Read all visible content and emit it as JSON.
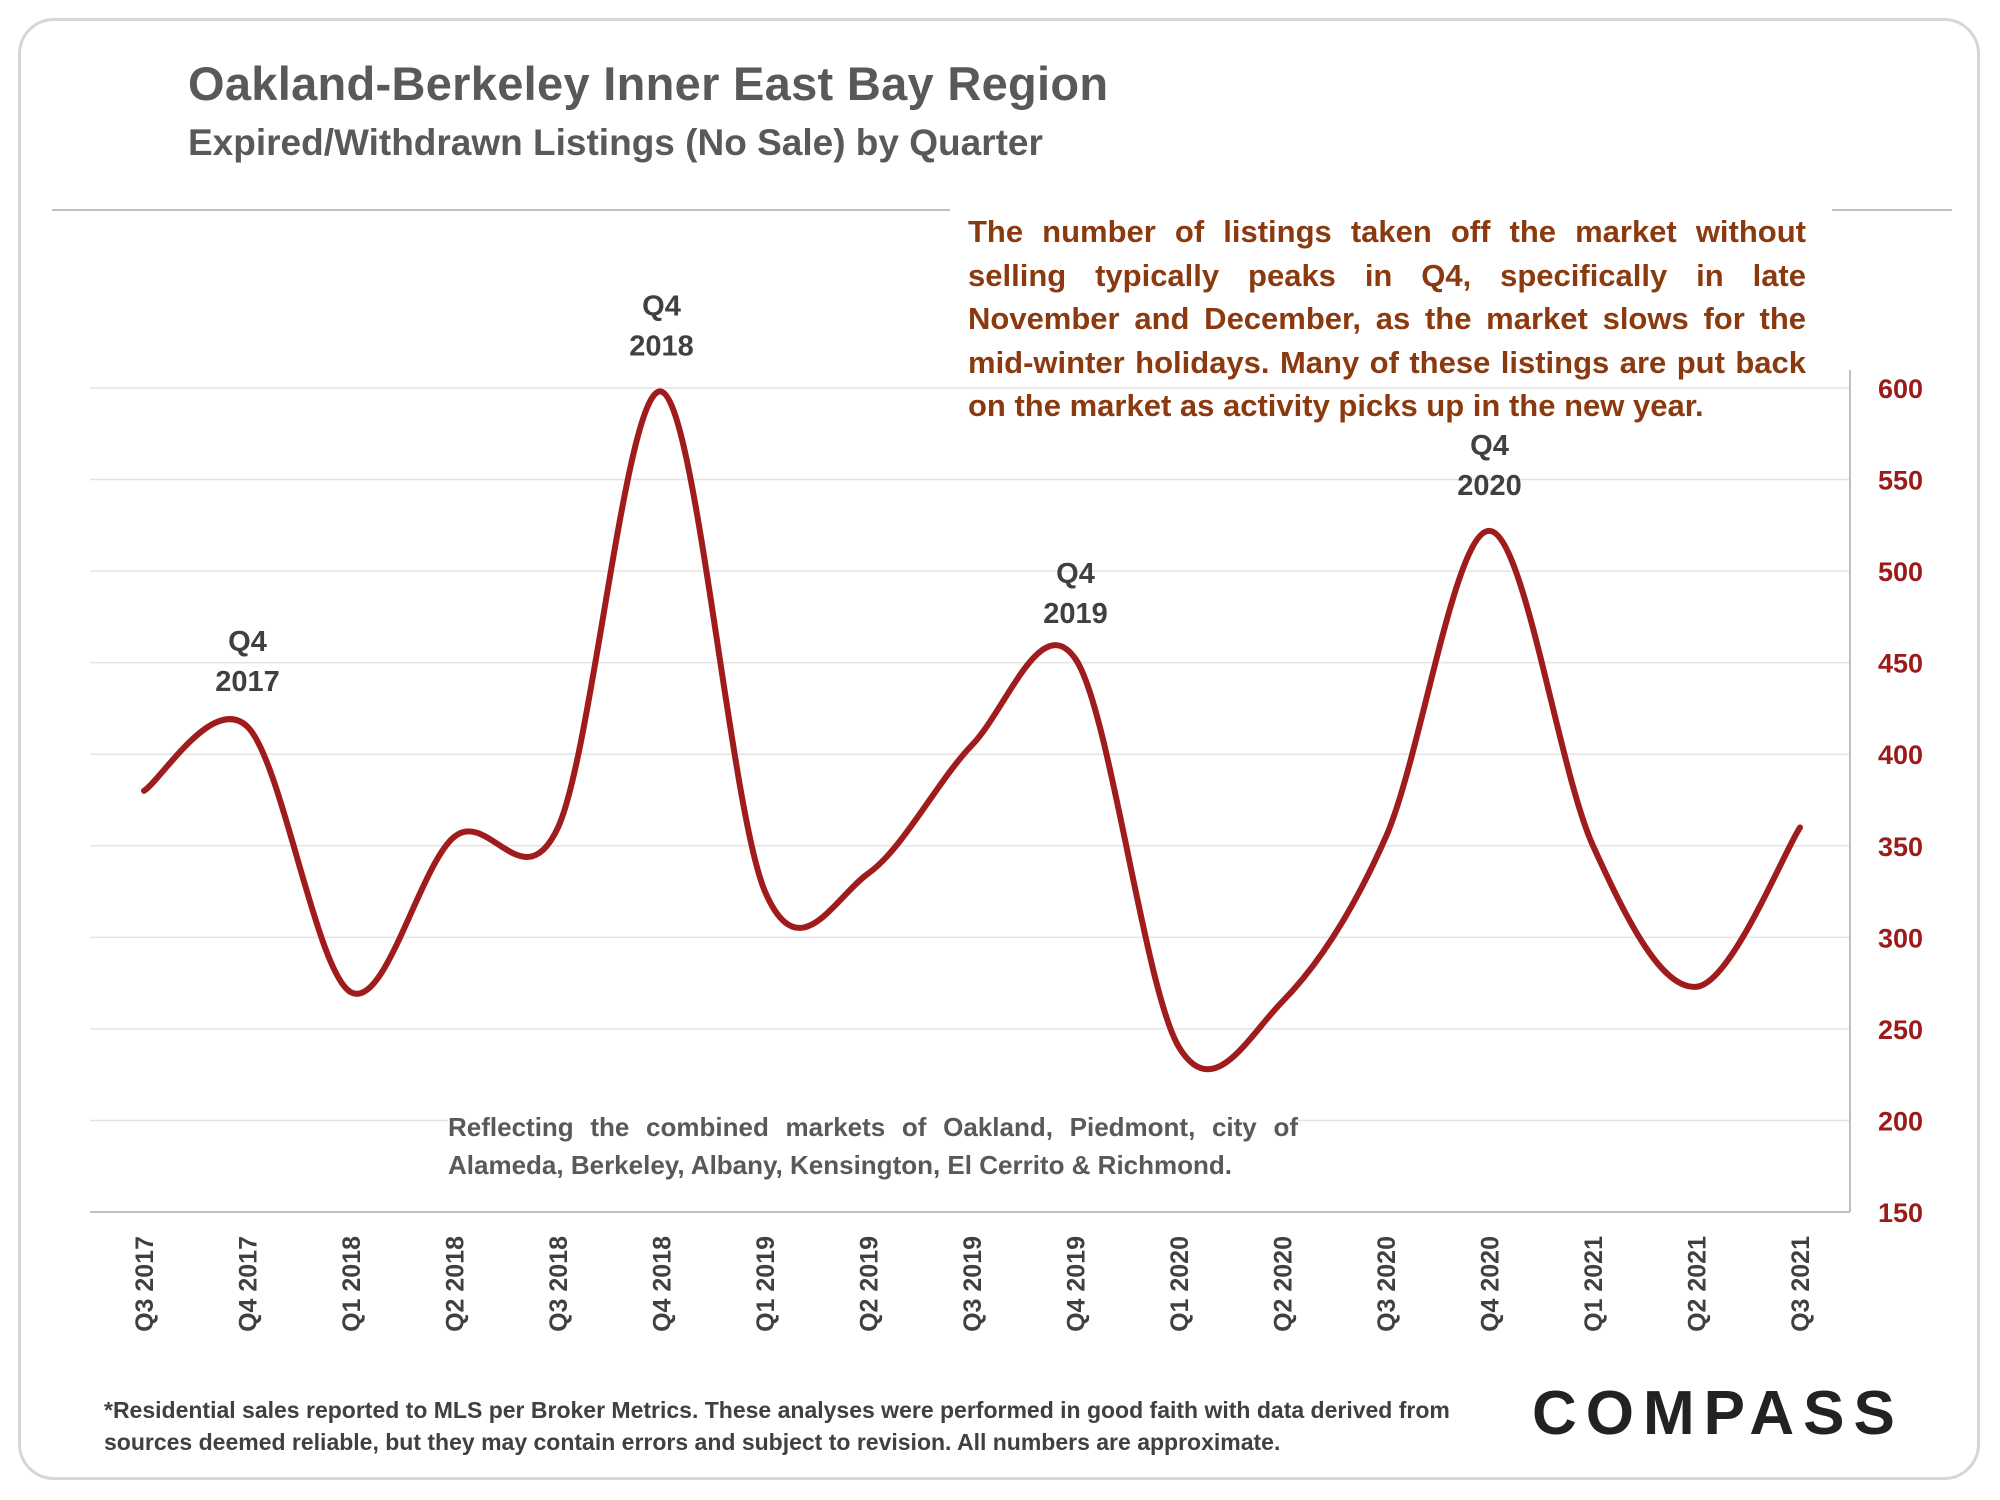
{
  "header": {
    "title": "Oakland-Berkeley Inner East Bay Region",
    "subtitle": "Expired/Withdrawn Listings (No Sale) by Quarter"
  },
  "annotation": "The number of listings taken off the market without selling typically peaks in Q4, specifically in late November and December, as the market slows for the mid-winter holidays. Many of these listings are put back on the market as activity picks up in the new year.",
  "region_note": "Reflecting the combined markets of Oakland, Piedmont, city of Alameda, Berkeley, Albany, Kensington, El Cerrito & Richmond.",
  "footnote": "*Residential sales reported to MLS per Broker Metrics. These analyses were performed in good faith with data derived from sources deemed reliable, but they may contain errors and subject to revision. All numbers are approximate.",
  "logo": "COMPASS",
  "colors": {
    "line": "#a01c1c",
    "ytick": "#9b1b1b",
    "annotation": "#8b3a0f"
  },
  "chart_data": {
    "type": "line",
    "categories": [
      "Q3 2017",
      "Q4 2017",
      "Q1 2018",
      "Q2 2018",
      "Q3 2018",
      "Q4 2018",
      "Q1 2019",
      "Q2 2019",
      "Q3 2019",
      "Q4 2019",
      "Q1 2020",
      "Q2 2020",
      "Q3 2020",
      "Q4 2020",
      "Q1 2021",
      "Q2 2021",
      "Q3 2021"
    ],
    "series": [
      {
        "values": [
          380,
          415,
          270,
          355,
          360,
          598,
          325,
          335,
          405,
          452,
          240,
          265,
          355,
          522,
          350,
          273,
          360
        ]
      }
    ],
    "ylim": [
      150,
      600
    ],
    "yticks": [
      150,
      200,
      250,
      300,
      350,
      400,
      450,
      500,
      550,
      600
    ],
    "y_axis_side": "right",
    "grid": true,
    "smooth": true,
    "peak_labels": [
      {
        "index": 1,
        "line1": "Q4",
        "line2": "2017"
      },
      {
        "index": 5,
        "line1": "Q4",
        "line2": "2018"
      },
      {
        "index": 9,
        "line1": "Q4",
        "line2": "2019"
      },
      {
        "index": 13,
        "line1": "Q4",
        "line2": "2020"
      }
    ]
  }
}
